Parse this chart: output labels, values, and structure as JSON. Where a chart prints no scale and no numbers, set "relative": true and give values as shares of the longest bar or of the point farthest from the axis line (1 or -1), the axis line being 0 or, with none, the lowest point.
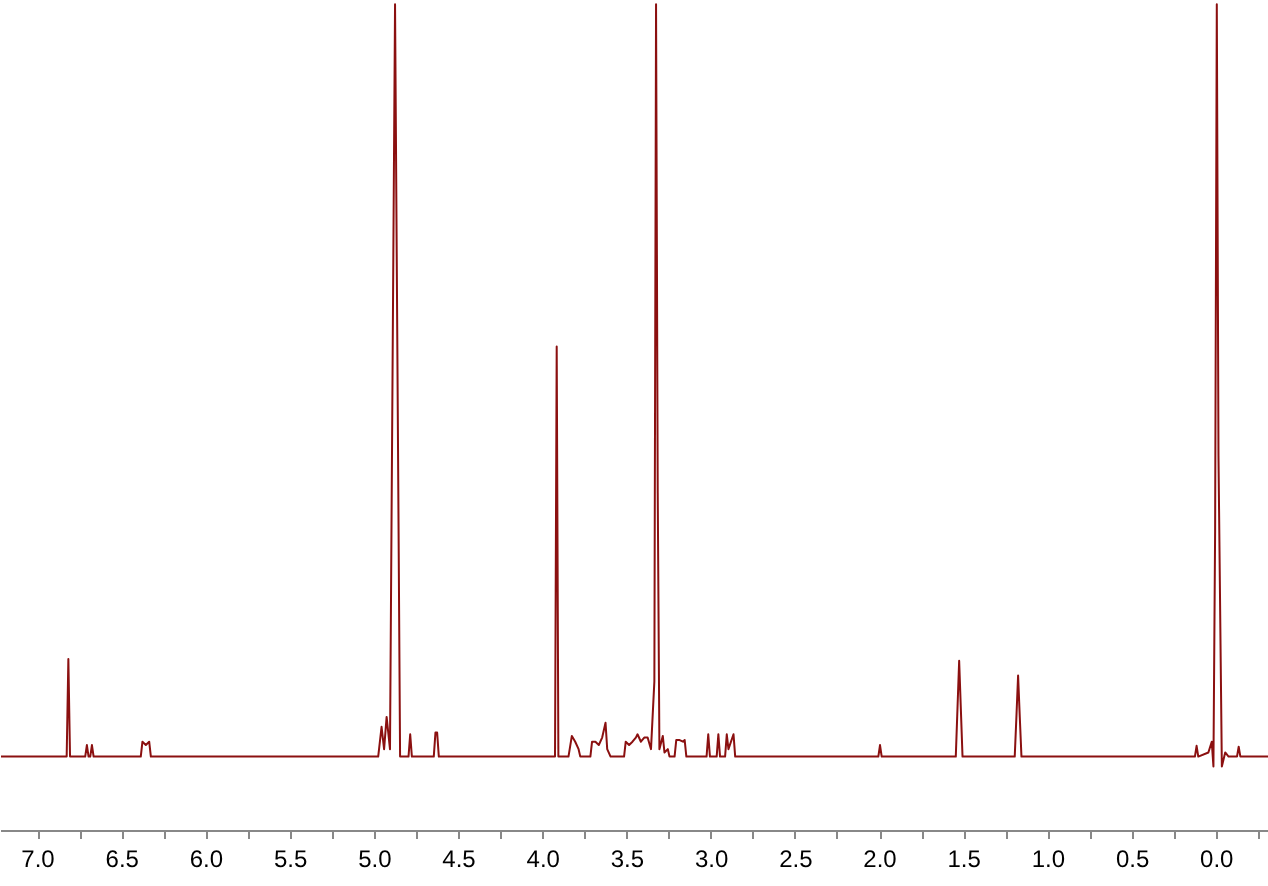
{
  "chart_data": {
    "type": "line",
    "relative": true,
    "grid": false,
    "xlim": [
      7.22,
      -0.31
    ],
    "xticks": [
      {
        "value": 7.0,
        "label": "7.0"
      },
      {
        "value": 6.5,
        "label": "6.5"
      },
      {
        "value": 6.0,
        "label": "6.0"
      },
      {
        "value": 5.5,
        "label": "5.5"
      },
      {
        "value": 5.0,
        "label": "5.0"
      },
      {
        "value": 4.5,
        "label": "4.5"
      },
      {
        "value": 4.0,
        "label": "4.0"
      },
      {
        "value": 3.5,
        "label": "3.5"
      },
      {
        "value": 3.0,
        "label": "3.0"
      },
      {
        "value": 2.5,
        "label": "2.5"
      },
      {
        "value": 2.0,
        "label": "2.0"
      },
      {
        "value": 1.5,
        "label": "1.5"
      },
      {
        "value": 1.0,
        "label": "1.0"
      },
      {
        "value": 0.5,
        "label": "0.5"
      },
      {
        "value": 0.0,
        "label": "0.0"
      }
    ],
    "series": [
      {
        "color": "#8b1010",
        "x": [
          7.22,
          6.83,
          6.82,
          6.81,
          6.72,
          6.71,
          6.7,
          6.69,
          6.68,
          6.67,
          6.39,
          6.38,
          6.36,
          6.34,
          6.33,
          4.98,
          4.96,
          4.945,
          4.93,
          4.91,
          4.88,
          4.85,
          4.8,
          4.79,
          4.78,
          4.65,
          4.64,
          4.63,
          4.62,
          3.93,
          3.92,
          3.91,
          3.85,
          3.83,
          3.81,
          3.79,
          3.78,
          3.72,
          3.71,
          3.69,
          3.67,
          3.65,
          3.63,
          3.62,
          3.6,
          3.52,
          3.51,
          3.49,
          3.47,
          3.45,
          3.44,
          3.42,
          3.4,
          3.38,
          3.36,
          3.34,
          3.33,
          3.32,
          3.31,
          3.29,
          3.28,
          3.26,
          3.25,
          3.22,
          3.21,
          3.19,
          3.17,
          3.16,
          3.15,
          3.03,
          3.02,
          3.01,
          2.97,
          2.96,
          2.95,
          2.92,
          2.91,
          2.9,
          2.87,
          2.86,
          2.01,
          2.0,
          1.99,
          1.55,
          1.53,
          1.51,
          1.2,
          1.19,
          1.18,
          1.17,
          1.16,
          0.13,
          0.12,
          0.11,
          0.05,
          0.03,
          0.02,
          0.01,
          0.0,
          -0.01,
          -0.03,
          -0.05,
          -0.07,
          -0.12,
          -0.13,
          -0.14,
          -0.31
        ],
        "values": [
          0.09,
          0.09,
          0.208,
          0.09,
          0.09,
          0.104,
          0.09,
          0.09,
          0.104,
          0.09,
          0.09,
          0.108,
          0.104,
          0.108,
          0.09,
          0.09,
          0.126,
          0.099,
          0.138,
          0.099,
          1,
          0.09,
          0.09,
          0.117,
          0.09,
          0.09,
          0.119,
          0.119,
          0.09,
          0.09,
          0.586,
          0.09,
          0.09,
          0.115,
          0.108,
          0.099,
          0.09,
          0.09,
          0.108,
          0.108,
          0.104,
          0.113,
          0.131,
          0.099,
          0.09,
          0.09,
          0.108,
          0.104,
          0.108,
          0.113,
          0.117,
          0.108,
          0.113,
          0.113,
          0.099,
          0.181,
          1,
          0.409,
          0.099,
          0.115,
          0.095,
          0.099,
          0.09,
          0.09,
          0.11,
          0.11,
          0.108,
          0.11,
          0.09,
          0.09,
          0.117,
          0.09,
          0.09,
          0.117,
          0.09,
          0.09,
          0.117,
          0.099,
          0.117,
          0.09,
          0.09,
          0.104,
          0.09,
          0.09,
          0.206,
          0.09,
          0.09,
          0.138,
          0.188,
          0.138,
          0.09,
          0.09,
          0.103,
          0.09,
          0.095,
          0.108,
          0.078,
          0.363,
          1,
          0.454,
          0.078,
          0.095,
          0.09,
          0.09,
          0.102,
          0.09,
          0.09
        ]
      }
    ]
  }
}
